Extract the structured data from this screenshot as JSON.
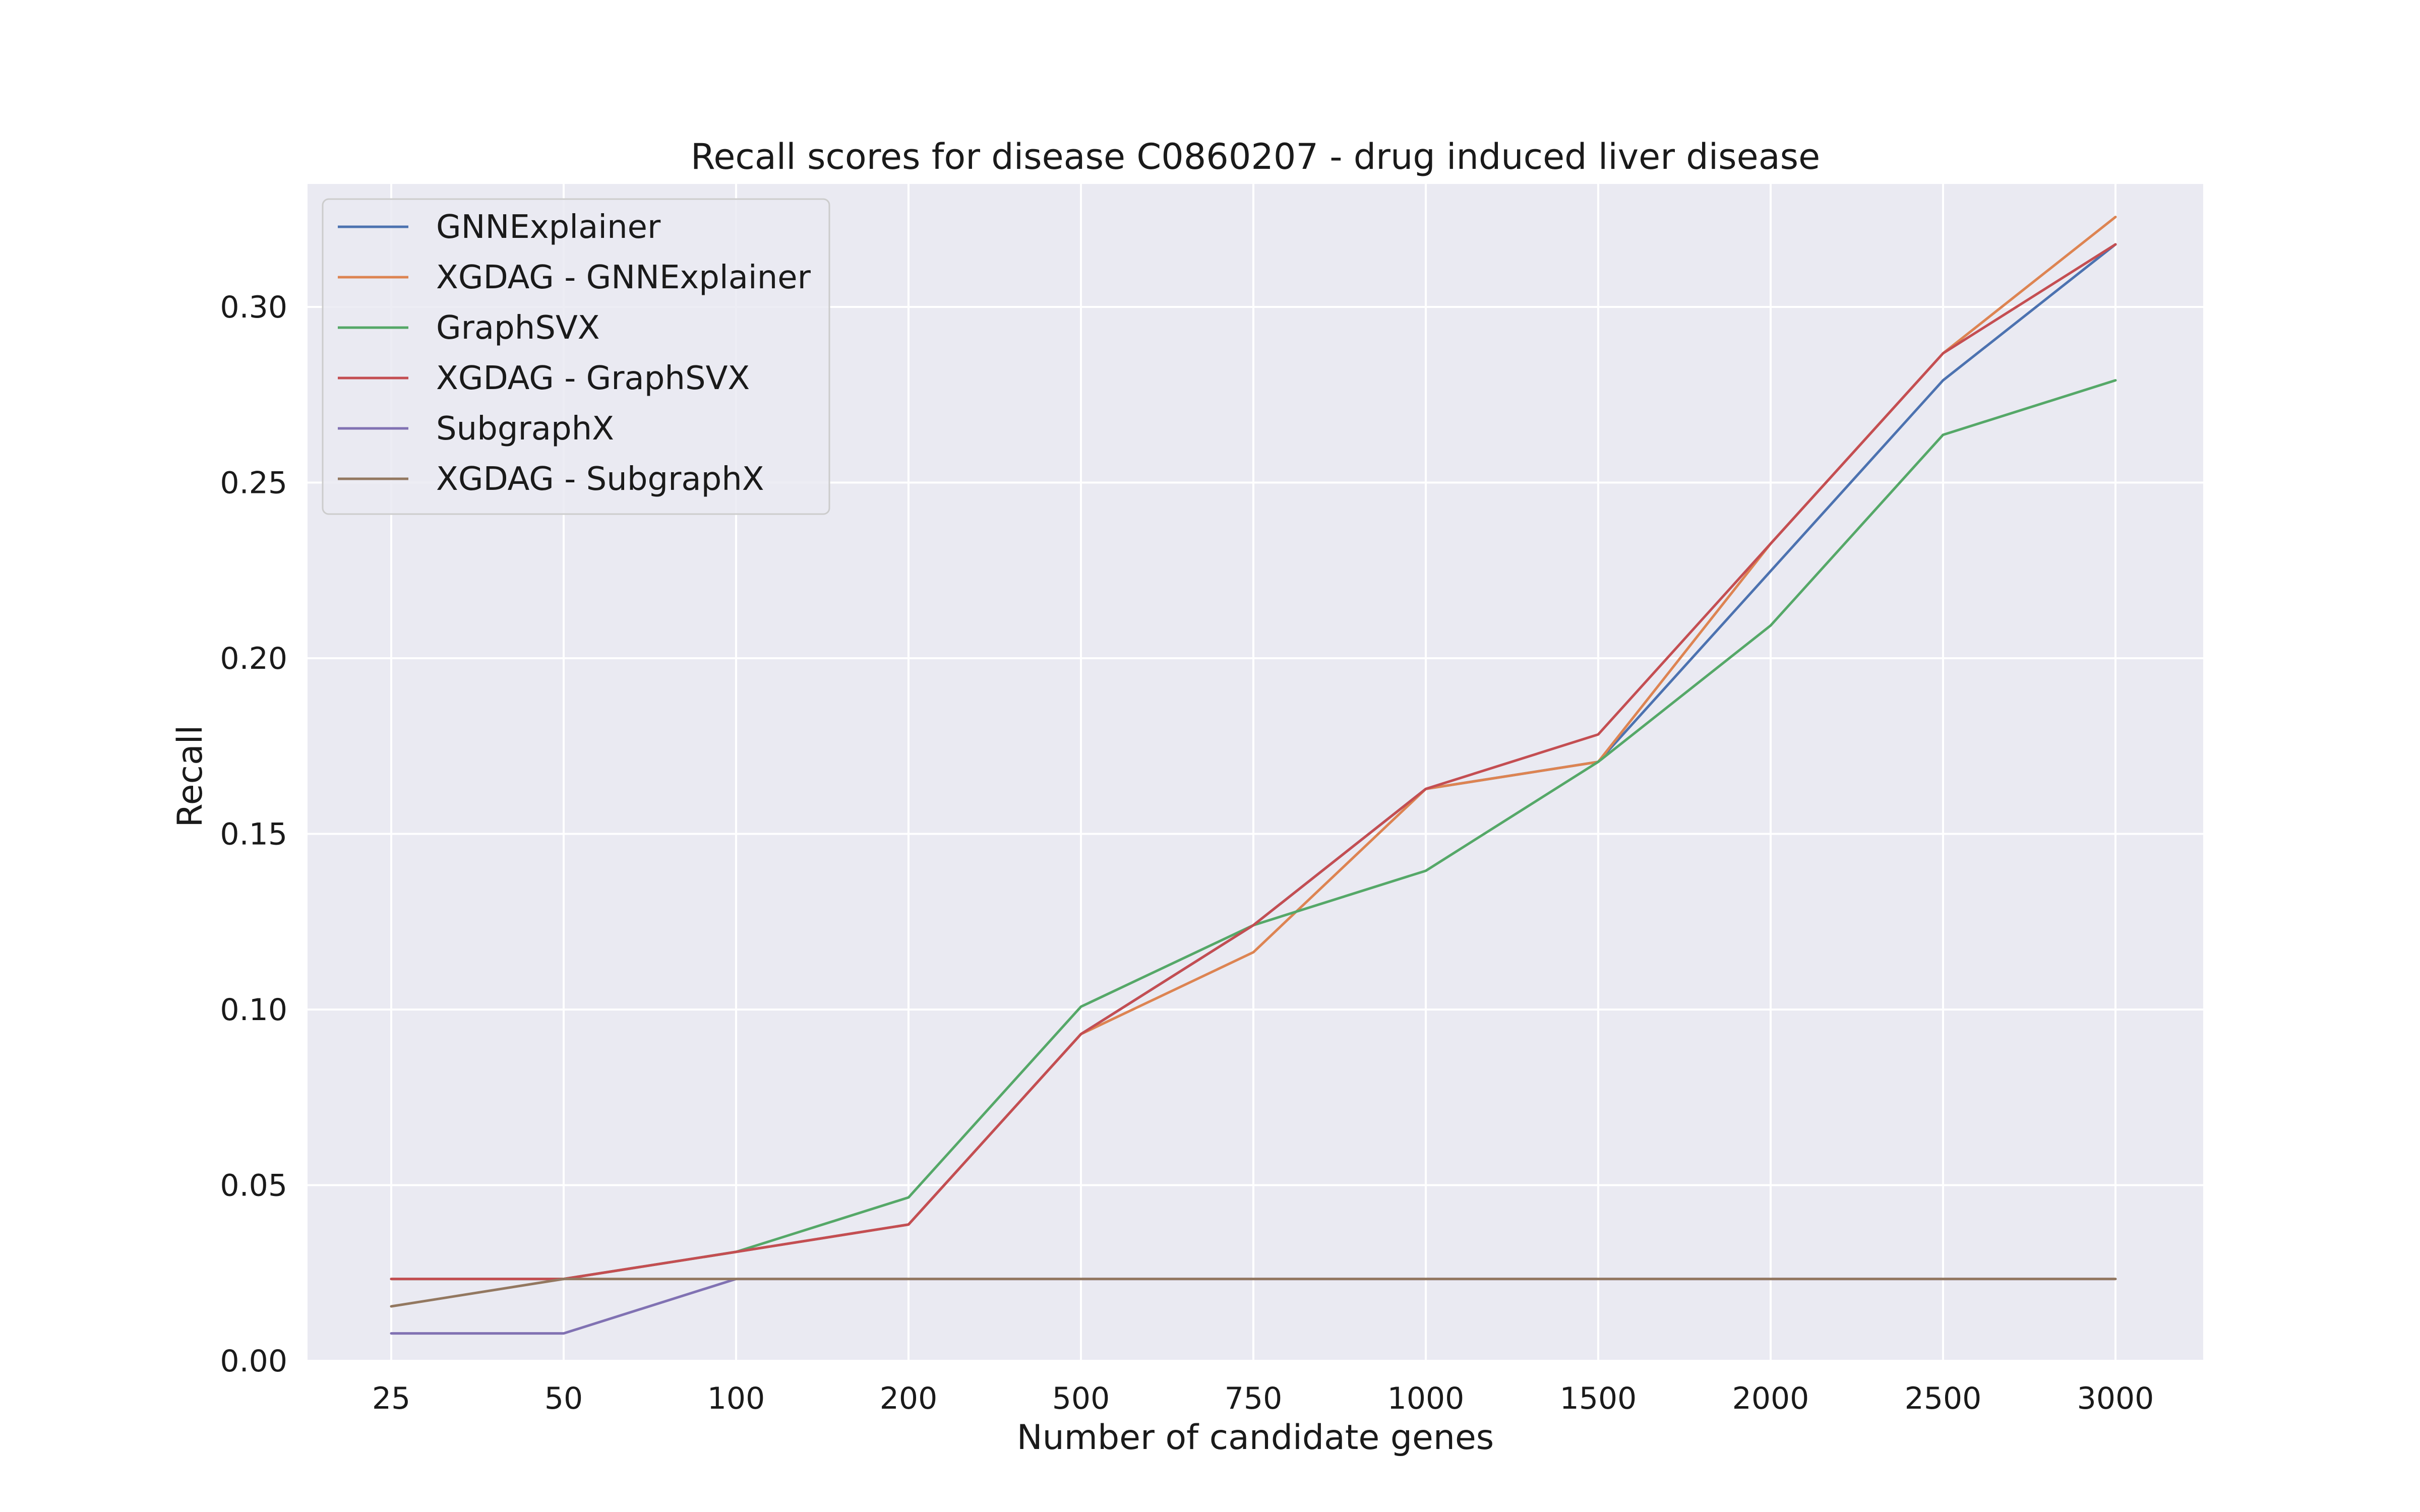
{
  "chart_data": {
    "type": "line",
    "title": "Recall scores for disease C0860207 - drug induced liver disease",
    "xlabel": "Number of candidate genes",
    "ylabel": "Recall",
    "categories": [
      "25",
      "50",
      "100",
      "200",
      "500",
      "750",
      "1000",
      "1500",
      "2000",
      "2500",
      "3000"
    ],
    "yticks": [
      "0.00",
      "0.05",
      "0.10",
      "0.15",
      "0.20",
      "0.25",
      "0.30"
    ],
    "ylim": [
      0.0,
      0.335
    ],
    "grid": true,
    "legend_position": "top-left",
    "series": [
      {
        "name": "GNNExplainer",
        "color": "#4c72b0",
        "values": [
          0.0233,
          0.0233,
          0.031,
          0.0388,
          0.093,
          0.124,
          0.1628,
          0.1705,
          0.2248,
          0.2791,
          0.3178
        ]
      },
      {
        "name": "XGDAG - GNNExplainer",
        "color": "#dd8452",
        "values": [
          0.0233,
          0.0233,
          0.031,
          0.0388,
          0.093,
          0.1163,
          0.1628,
          0.1705,
          0.2326,
          0.2868,
          0.3256
        ]
      },
      {
        "name": "GraphSVX",
        "color": "#55a868",
        "values": [
          0.0233,
          0.0233,
          0.031,
          0.0465,
          0.1008,
          0.124,
          0.1395,
          0.1705,
          0.2093,
          0.2636,
          0.2791
        ]
      },
      {
        "name": "XGDAG - GraphSVX",
        "color": "#c44e52",
        "values": [
          0.0233,
          0.0233,
          0.031,
          0.0388,
          0.093,
          0.124,
          0.1628,
          0.1783,
          0.2326,
          0.2868,
          0.3178
        ]
      },
      {
        "name": "SubgraphX",
        "color": "#8172b3",
        "values": [
          0.0078,
          0.0078,
          0.0233,
          0.0233,
          0.0233,
          0.0233,
          0.0233,
          0.0233,
          0.0233,
          0.0233,
          0.0233
        ]
      },
      {
        "name": "XGDAG - SubgraphX",
        "color": "#937860",
        "values": [
          0.0155,
          0.0233,
          0.0233,
          0.0233,
          0.0233,
          0.0233,
          0.0233,
          0.0233,
          0.0233,
          0.0233,
          0.0233
        ]
      }
    ]
  },
  "colors": {
    "plot_background": "#eaeaf2",
    "grid": "#ffffff"
  }
}
